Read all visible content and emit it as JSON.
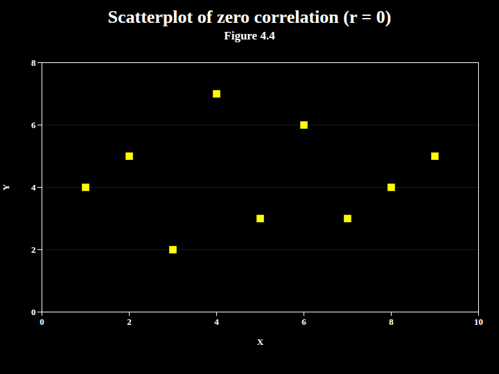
{
  "chart_data": {
    "type": "scatter",
    "title": "Scatterplot of zero correlation (r = 0)",
    "subtitle": "Figure 4.4",
    "xlabel": "X",
    "ylabel": "Y",
    "x": [
      1,
      2,
      3,
      4,
      5,
      6,
      7,
      8,
      9
    ],
    "values": [
      4,
      5,
      2,
      7,
      3,
      6,
      3,
      4,
      5
    ],
    "color": "#FFFF00",
    "marker": "square",
    "xlim": [
      0,
      10
    ],
    "ylim": [
      0,
      8
    ],
    "xticks": [
      0,
      2,
      4,
      6,
      8,
      10
    ],
    "yticks": [
      0,
      2,
      4,
      6,
      8
    ],
    "grid": "y"
  }
}
